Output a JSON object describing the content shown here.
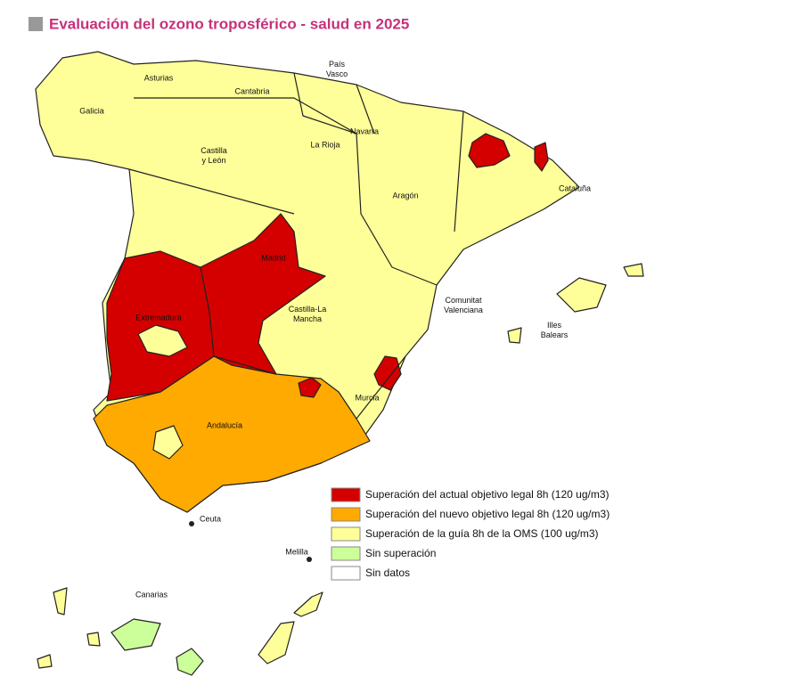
{
  "title": "Evaluación del ozono troposférico - salud en 2025",
  "regions": [
    {
      "label": "Asturias"
    },
    {
      "label": "Cantabria"
    },
    {
      "label": "País Vasco"
    },
    {
      "label": "Galicia"
    },
    {
      "label": "Navarra"
    },
    {
      "label": "La Rioja"
    },
    {
      "label": "Castilla y León"
    },
    {
      "label": "Aragón"
    },
    {
      "label": "Cataluña"
    },
    {
      "label": "Madrid"
    },
    {
      "label": "Castilla-La Mancha"
    },
    {
      "label": "Extremadura"
    },
    {
      "label": "Comunitat Valenciana"
    },
    {
      "label": "Illes Balears"
    },
    {
      "label": "Murcia"
    },
    {
      "label": "Andalucía"
    },
    {
      "label": "Ceuta"
    },
    {
      "label": "Melilla"
    },
    {
      "label": "Canarias"
    }
  ],
  "legend": [
    {
      "label": "Superación del actual objetivo legal 8h (120 ug/m3)",
      "color": "#d40000"
    },
    {
      "label": "Superación del nuevo objetivo legal 8h (120 ug/m3)",
      "color": "#ffaa00"
    },
    {
      "label": "Superación de la guía 8h de la OMS (100 ug/m3)",
      "color": "#ffff99"
    },
    {
      "label": "Sin superación",
      "color": "#ccff99"
    },
    {
      "label": "Sin datos",
      "color": "#ffffff"
    }
  ]
}
